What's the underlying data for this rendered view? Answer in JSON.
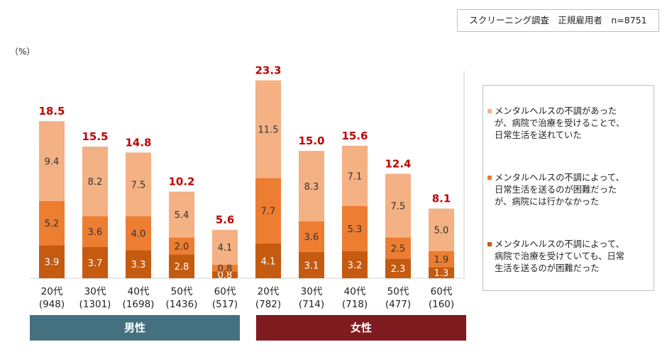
{
  "note": "スクリーニング調査　正規雇用者　n=8751",
  "unit_label": "（%）",
  "colors": {
    "light": "#f4b183",
    "mid": "#ed7d31",
    "dark": "#c55a11",
    "total": "#c00000",
    "male_band": "#44707f",
    "female_band": "#7f1a1f"
  },
  "legend": [
    {
      "label": "メンタルヘルスの不調があったが、病院で治療を受けることで、\n日常生活を送れていた",
      "lines": "メンタルヘルスの不調があった\nが、病院で治療を受けることで、\n日常生活を送れていた"
    },
    {
      "label": "メンタルヘルスの不調によって、日常生活を送るのが困難だったが、病院には行かなかった",
      "lines": "メンタルヘルスの不調によって、\n日常生活を送るのが困難だった\nが、病院には行かなかった"
    },
    {
      "label": "メンタルヘルスの不調によって、病院で治療を受けていても、日常生活を送るのが困難だった",
      "lines": "メンタルヘルスの不調によって、\n病院で治療を受けていても、日常\n生活を送るのが困難だった"
    }
  ],
  "chart_data": {
    "type": "bar",
    "stacked": true,
    "ylabel": "（%）",
    "categories": [
      {
        "age": "20代",
        "n": "(948)"
      },
      {
        "age": "30代",
        "n": "(1301)"
      },
      {
        "age": "40代",
        "n": "(1698)"
      },
      {
        "age": "50代",
        "n": "(1436)"
      },
      {
        "age": "60代",
        "n": "(517)"
      },
      {
        "age": "20代",
        "n": "(782)"
      },
      {
        "age": "30代",
        "n": "(714)"
      },
      {
        "age": "40代",
        "n": "(718)"
      },
      {
        "age": "50代",
        "n": "(477)"
      },
      {
        "age": "60代",
        "n": "(160)"
      }
    ],
    "groups": [
      {
        "label": "男性",
        "from": 0,
        "to": 4
      },
      {
        "label": "女性",
        "from": 5,
        "to": 9
      }
    ],
    "series": [
      {
        "name": "メンタルヘルスの不調によって、病院で治療を受けていても、日常生活を送るのが困難だった",
        "values": [
          3.9,
          3.7,
          3.3,
          2.8,
          0.8,
          4.1,
          3.1,
          3.2,
          2.3,
          1.3
        ]
      },
      {
        "name": "メンタルヘルスの不調によって、日常生活を送るのが困難だったが、病院には行かなかった",
        "values": [
          5.2,
          3.6,
          4.0,
          2.0,
          0.8,
          7.7,
          3.6,
          5.3,
          2.5,
          1.9
        ]
      },
      {
        "name": "メンタルヘルスの不調があったが、病院で治療を受けることで、日常生活を送れていた",
        "values": [
          9.4,
          8.2,
          7.5,
          5.4,
          4.1,
          11.5,
          8.3,
          7.1,
          7.5,
          5.0
        ]
      }
    ],
    "totals": [
      18.5,
      15.5,
      14.8,
      10.2,
      5.6,
      23.3,
      15.0,
      15.6,
      12.4,
      8.1
    ],
    "ylim": [
      0,
      25
    ],
    "grid": false,
    "legend_position": "right"
  }
}
